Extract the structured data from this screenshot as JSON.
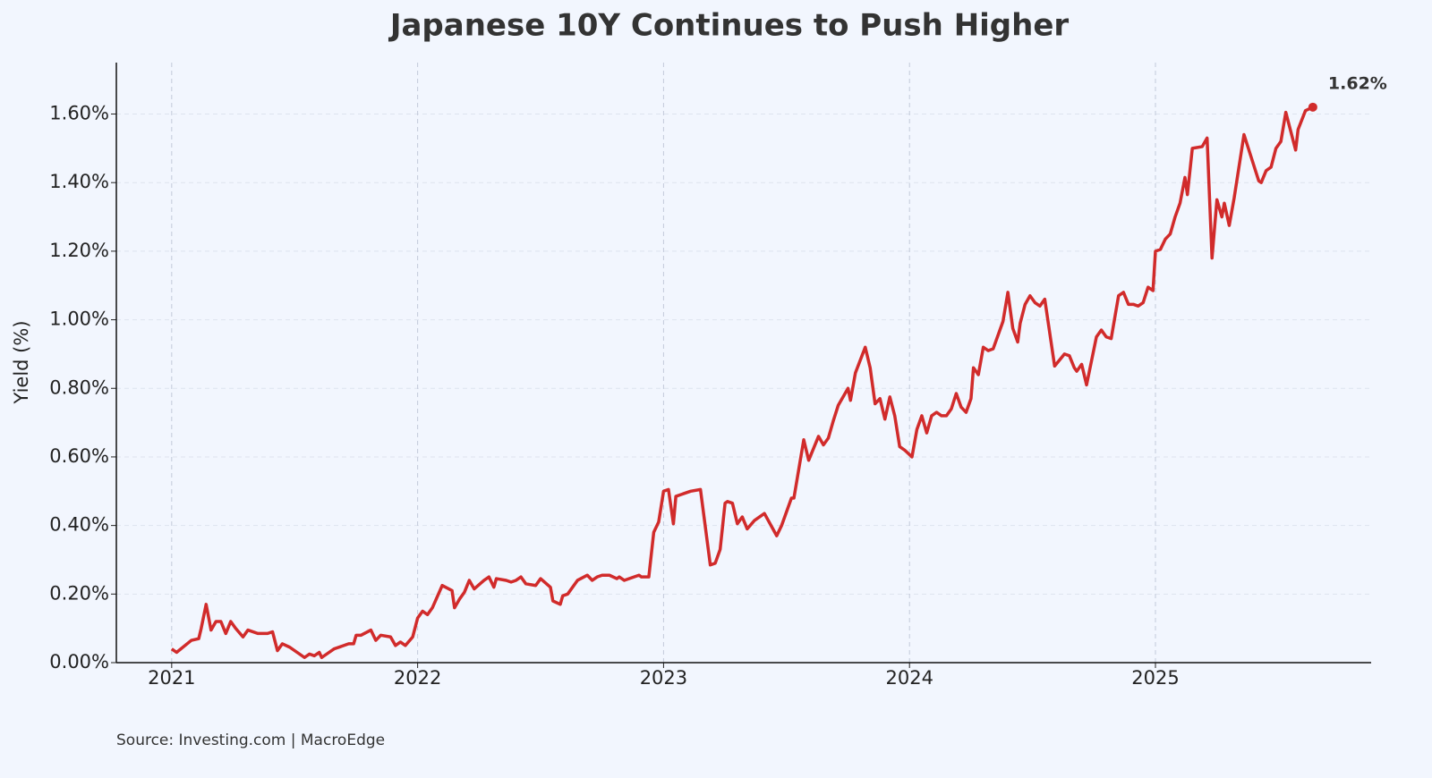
{
  "chart_data": {
    "type": "line",
    "title": "Japanese 10Y Continues to Push Higher",
    "ylabel": "Yield (%)",
    "source": "Source: Investing.com | MacroEdge",
    "annotations": [
      {
        "text": "1.62%"
      }
    ],
    "xlim": [
      2020.775,
      2025.877
    ],
    "xticks": [
      2021,
      2022,
      2023,
      2024,
      2025
    ],
    "ylim": [
      0,
      1.75
    ],
    "yticks": [
      {
        "value": 0,
        "label": "0.00%"
      },
      {
        "value": 0.2,
        "label": "0.20%"
      },
      {
        "value": 0.4,
        "label": "0.40%"
      },
      {
        "value": 0.6,
        "label": "0.60%"
      },
      {
        "value": 0.8,
        "label": "0.80%"
      },
      {
        "value": 1.0,
        "label": "1.00%"
      },
      {
        "value": 1.2,
        "label": "1.20%"
      },
      {
        "value": 1.4,
        "label": "1.40%"
      },
      {
        "value": 1.6,
        "label": "1.60%"
      }
    ],
    "grid": true,
    "x": [
      2021.0,
      2021.02,
      2021.08,
      2021.11,
      2021.12,
      2021.14,
      2021.16,
      2021.18,
      2021.2,
      2021.22,
      2021.24,
      2021.26,
      2021.29,
      2021.31,
      2021.35,
      2021.39,
      2021.41,
      2021.43,
      2021.45,
      2021.48,
      2021.51,
      2021.54,
      2021.56,
      2021.58,
      2021.6,
      2021.61,
      2021.64,
      2021.66,
      2021.72,
      2021.74,
      2021.75,
      2021.77,
      2021.81,
      2021.83,
      2021.85,
      2021.89,
      2021.91,
      2021.93,
      2021.95,
      2021.98,
      2022.0,
      2022.02,
      2022.04,
      2022.06,
      2022.1,
      2022.14,
      2022.15,
      2022.17,
      2022.19,
      2022.21,
      2022.23,
      2022.27,
      2022.29,
      2022.31,
      2022.32,
      2022.36,
      2022.38,
      2022.4,
      2022.42,
      2022.44,
      2022.48,
      2022.5,
      2022.54,
      2022.55,
      2022.58,
      2022.59,
      2022.61,
      2022.65,
      2022.69,
      2022.71,
      2022.73,
      2022.75,
      2022.78,
      2022.81,
      2022.82,
      2022.84,
      2022.88,
      2022.9,
      2022.91,
      2022.94,
      2022.96,
      2022.98,
      2023.0,
      2023.02,
      2023.04,
      2023.05,
      2023.07,
      2023.11,
      2023.15,
      2023.19,
      2023.21,
      2023.23,
      2023.25,
      2023.26,
      2023.28,
      2023.3,
      2023.32,
      2023.34,
      2023.37,
      2023.39,
      2023.41,
      2023.46,
      2023.48,
      2023.52,
      2023.53,
      2023.57,
      2023.59,
      2023.63,
      2023.65,
      2023.67,
      2023.69,
      2023.71,
      2023.75,
      2023.76,
      2023.78,
      2023.82,
      2023.84,
      2023.86,
      2023.88,
      2023.9,
      2023.92,
      2023.94,
      2023.96,
      2023.98,
      2024.01,
      2024.03,
      2024.05,
      2024.07,
      2024.09,
      2024.11,
      2024.13,
      2024.15,
      2024.17,
      2024.19,
      2024.21,
      2024.23,
      2024.25,
      2024.26,
      2024.28,
      2024.3,
      2024.32,
      2024.34,
      2024.38,
      2024.4,
      2024.42,
      2024.44,
      2024.45,
      2024.47,
      2024.49,
      2024.51,
      2024.53,
      2024.55,
      2024.59,
      2024.63,
      2024.65,
      2024.67,
      2024.68,
      2024.7,
      2024.72,
      2024.76,
      2024.78,
      2024.8,
      2024.82,
      2024.85,
      2024.87,
      2024.89,
      2024.91,
      2024.93,
      2024.95,
      2024.97,
      2024.99,
      2025.0,
      2025.02,
      2025.04,
      2025.06,
      2025.08,
      2025.1,
      2025.12,
      2025.13,
      2025.15,
      2025.19,
      2025.21,
      2025.23,
      2025.25,
      2025.27,
      2025.28,
      2025.3,
      2025.32,
      2025.36,
      2025.42,
      2025.43,
      2025.45,
      2025.47,
      2025.49,
      2025.51,
      2025.53,
      2025.57,
      2025.58,
      2025.61,
      2025.64
    ],
    "series": [
      {
        "color": "#d12b2b",
        "values": [
          0.04,
          0.03,
          0.065,
          0.07,
          0.1,
          0.17,
          0.095,
          0.12,
          0.12,
          0.085,
          0.12,
          0.1,
          0.075,
          0.095,
          0.085,
          0.085,
          0.09,
          0.035,
          0.055,
          0.045,
          0.03,
          0.015,
          0.025,
          0.02,
          0.03,
          0.015,
          0.03,
          0.04,
          0.055,
          0.055,
          0.08,
          0.08,
          0.095,
          0.065,
          0.08,
          0.075,
          0.05,
          0.06,
          0.05,
          0.075,
          0.13,
          0.15,
          0.14,
          0.16,
          0.225,
          0.21,
          0.16,
          0.185,
          0.205,
          0.24,
          0.215,
          0.24,
          0.25,
          0.22,
          0.245,
          0.24,
          0.235,
          0.24,
          0.25,
          0.23,
          0.225,
          0.245,
          0.22,
          0.18,
          0.17,
          0.195,
          0.2,
          0.24,
          0.255,
          0.24,
          0.25,
          0.255,
          0.255,
          0.245,
          0.25,
          0.24,
          0.25,
          0.255,
          0.25,
          0.25,
          0.38,
          0.41,
          0.5,
          0.505,
          0.405,
          0.485,
          0.49,
          0.5,
          0.505,
          0.285,
          0.29,
          0.33,
          0.465,
          0.47,
          0.465,
          0.405,
          0.425,
          0.39,
          0.415,
          0.425,
          0.435,
          0.37,
          0.4,
          0.48,
          0.48,
          0.65,
          0.59,
          0.66,
          0.635,
          0.655,
          0.705,
          0.75,
          0.8,
          0.765,
          0.845,
          0.92,
          0.86,
          0.755,
          0.77,
          0.71,
          0.775,
          0.72,
          0.63,
          0.62,
          0.6,
          0.68,
          0.72,
          0.67,
          0.72,
          0.73,
          0.72,
          0.72,
          0.74,
          0.785,
          0.745,
          0.73,
          0.77,
          0.86,
          0.84,
          0.92,
          0.91,
          0.915,
          0.995,
          1.08,
          0.975,
          0.935,
          0.99,
          1.045,
          1.07,
          1.05,
          1.04,
          1.06,
          0.865,
          0.9,
          0.895,
          0.86,
          0.85,
          0.87,
          0.81,
          0.95,
          0.97,
          0.95,
          0.945,
          1.07,
          1.08,
          1.045,
          1.045,
          1.04,
          1.05,
          1.095,
          1.085,
          1.2,
          1.205,
          1.235,
          1.25,
          1.3,
          1.34,
          1.415,
          1.365,
          1.5,
          1.505,
          1.53,
          1.18,
          1.35,
          1.3,
          1.34,
          1.275,
          1.355,
          1.54,
          1.405,
          1.4,
          1.435,
          1.445,
          1.5,
          1.52,
          1.605,
          1.495,
          1.555,
          1.61,
          1.62
        ]
      }
    ]
  }
}
